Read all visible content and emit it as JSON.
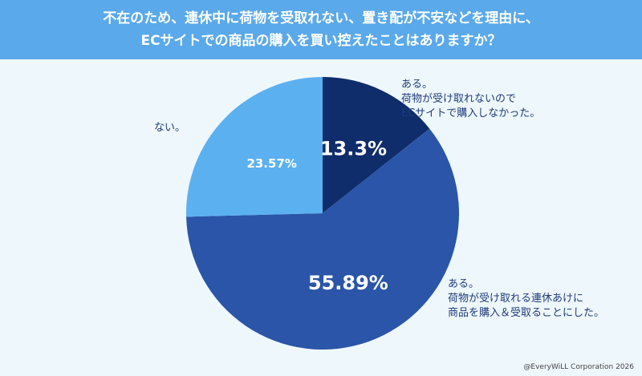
{
  "title": {
    "line1": "不在のため、連休中に荷物を受取れない、置き配が不安などを理由に、",
    "line2": "ECサイトでの商品の購入を買い控えたことはありますか？"
  },
  "chart_data": {
    "type": "pie",
    "slices": [
      {
        "label_lines": [
          "ある。",
          "荷物が受け取れないので",
          "ECサイトで購入しなかった。"
        ],
        "value": 13.3,
        "value_label": "13.3%",
        "color": "#0f2d6b"
      },
      {
        "label_lines": [
          "ある。",
          "荷物が受け取れる連休あけに",
          "商品を購入＆受取ることにした。"
        ],
        "value": 55.89,
        "value_label": "55.89%",
        "color": "#2a55a8"
      },
      {
        "label_lines": [
          "ない。"
        ],
        "value": 23.57,
        "value_label": "23.57%",
        "color": "#5bb0f0"
      }
    ]
  },
  "footer": {
    "copyright": "@EveryWiLL Corporation 2026"
  }
}
